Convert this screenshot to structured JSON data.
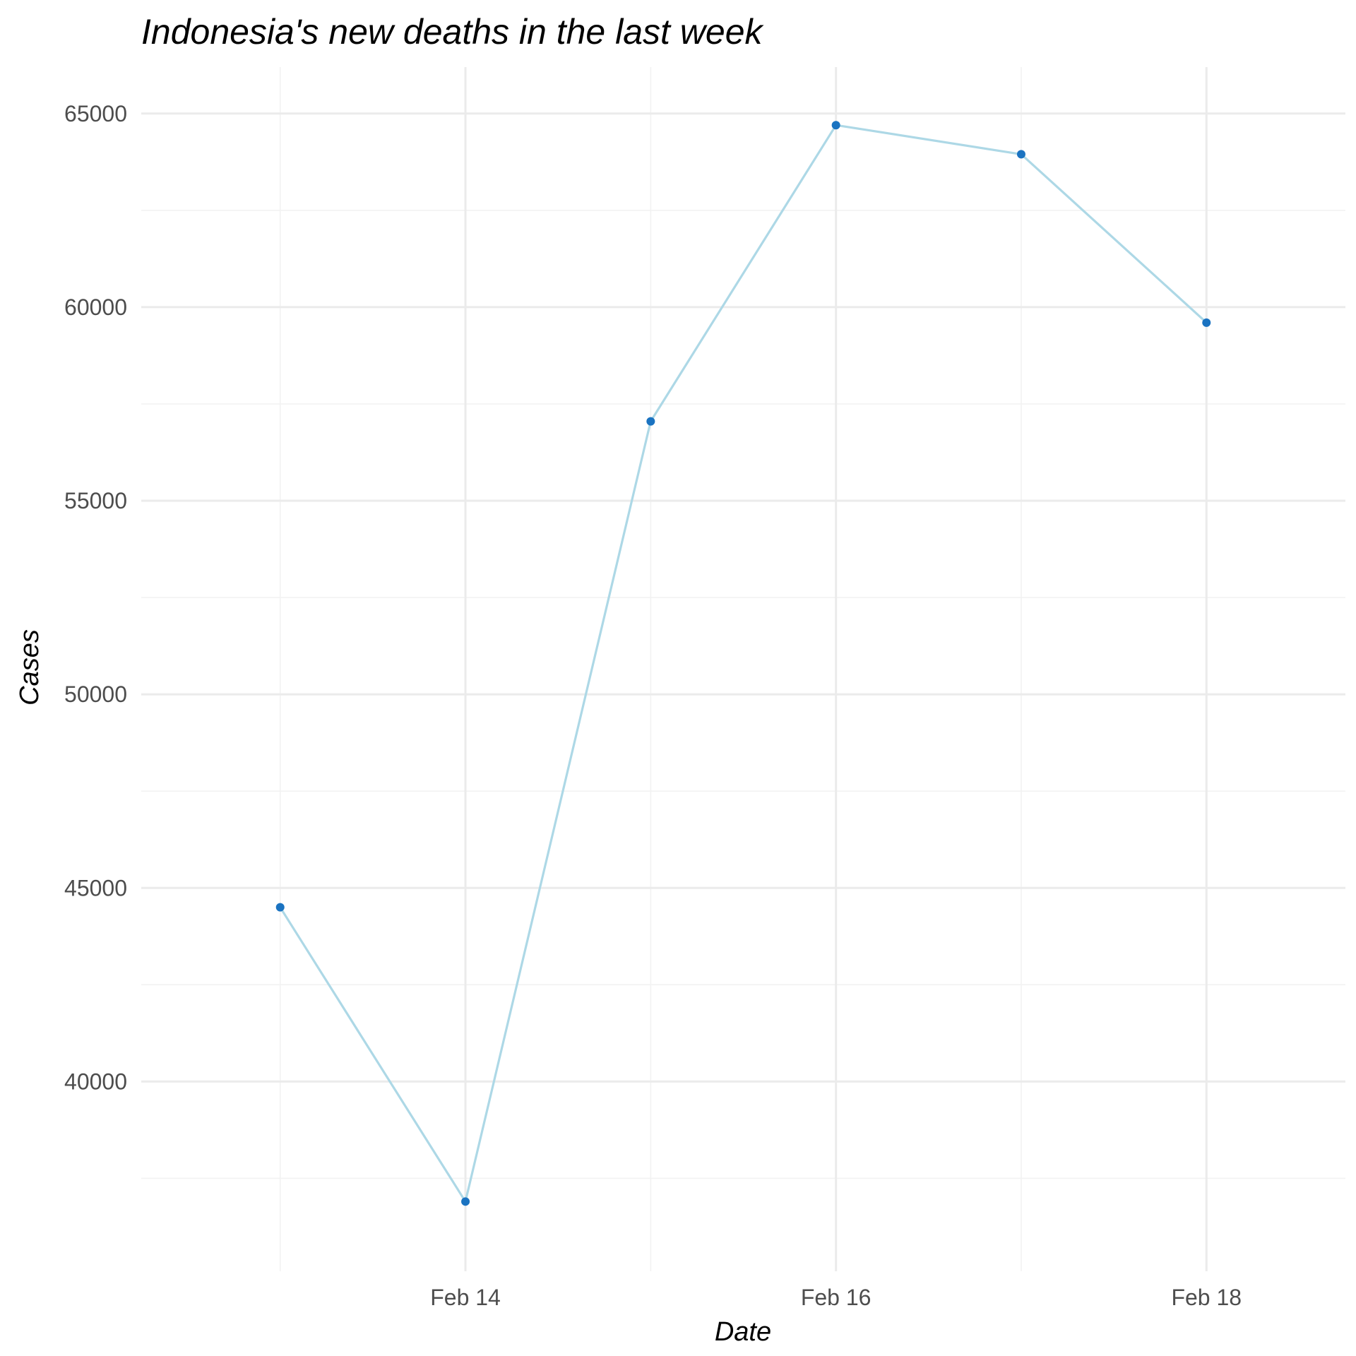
{
  "chart_data": {
    "type": "line",
    "title": "Indonesia's new deaths in the last week",
    "xlabel": "Date",
    "ylabel": "Cases",
    "x": [
      "2022-02-13",
      "2022-02-14",
      "2022-02-15",
      "2022-02-16",
      "2022-02-17",
      "2022-02-18"
    ],
    "x_ticks": [
      {
        "value": "2022-02-14",
        "label": "Feb 14"
      },
      {
        "value": "2022-02-16",
        "label": "Feb 16"
      },
      {
        "value": "2022-02-18",
        "label": "Feb 18"
      }
    ],
    "series": [
      {
        "values": [
          44500,
          36900,
          57050,
          64700,
          63950,
          59600
        ]
      }
    ],
    "y_ticks": [
      40000,
      45000,
      50000,
      55000,
      60000,
      65000
    ],
    "ylim": [
      35100,
      66200
    ],
    "xlim": [
      "2022-02-12 18:00",
      "2022-02-19 06:00"
    ],
    "grid": true,
    "line_color": "#add8e6",
    "point_color": "#1a73c1"
  }
}
